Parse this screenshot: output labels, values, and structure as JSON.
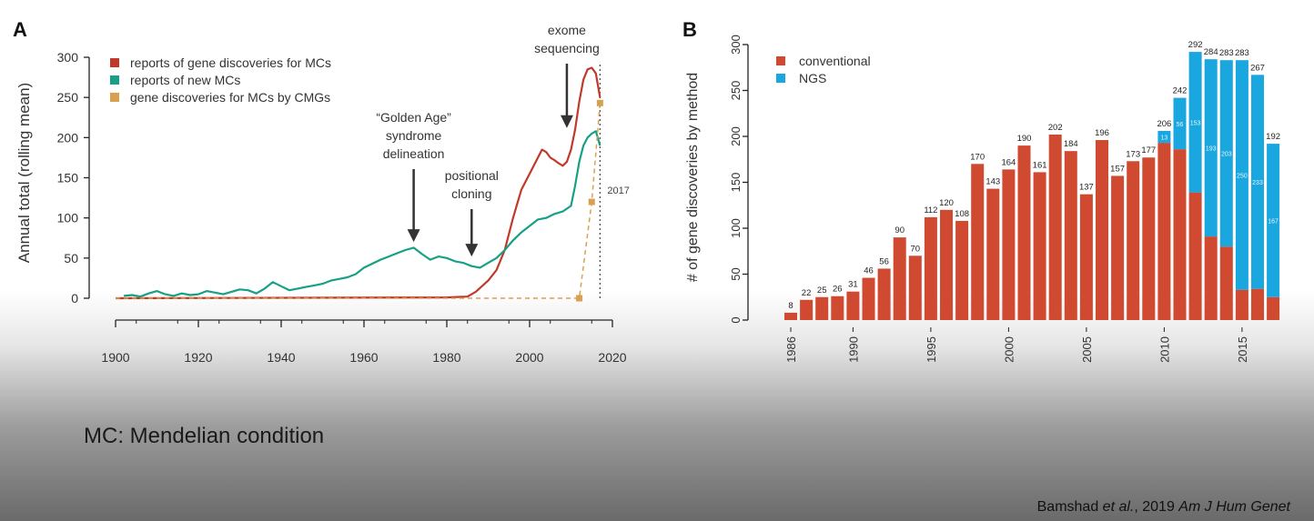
{
  "footnote": "MC: Mendelian condition",
  "citation": {
    "authors": "Bamshad",
    "etal": "et al.",
    "year": ", 2019",
    "journal": "Am J Hum Genet"
  },
  "colors": {
    "red_line": "#c0392b",
    "teal_line": "#16a085",
    "orange_dash": "#d9a050",
    "bar_red": "#d04a32",
    "bar_blue": "#1aa7df"
  },
  "chart_data": [
    {
      "panel_label": "A",
      "type": "line",
      "ylabel": "Annual total (rolling mean)",
      "xlim": [
        1900,
        2020
      ],
      "ylim": [
        0,
        300
      ],
      "x_ticks": [
        1900,
        1920,
        1940,
        1960,
        1980,
        2000,
        2020
      ],
      "y_ticks": [
        0,
        50,
        100,
        150,
        200,
        250,
        300
      ],
      "legend_position": "top-left",
      "series": [
        {
          "name": "reports of gene discoveries for MCs",
          "color": "#c0392b",
          "points": [
            [
              1900,
              0
            ],
            [
              1980,
              1
            ],
            [
              1985,
              2
            ],
            [
              1987,
              8
            ],
            [
              1990,
              22
            ],
            [
              1992,
              35
            ],
            [
              1994,
              60
            ],
            [
              1996,
              100
            ],
            [
              1998,
              135
            ],
            [
              2000,
              155
            ],
            [
              2002,
              175
            ],
            [
              2003,
              185
            ],
            [
              2004,
              182
            ],
            [
              2005,
              175
            ],
            [
              2006,
              172
            ],
            [
              2007,
              168
            ],
            [
              2008,
              165
            ],
            [
              2009,
              170
            ],
            [
              2010,
              185
            ],
            [
              2011,
              210
            ],
            [
              2012,
              245
            ],
            [
              2013,
              272
            ],
            [
              2014,
              285
            ],
            [
              2015,
              287
            ],
            [
              2016,
              280
            ],
            [
              2017,
              250
            ]
          ]
        },
        {
          "name": "reports of new MCs",
          "color": "#16a085",
          "points": [
            [
              1902,
              3
            ],
            [
              1904,
              4
            ],
            [
              1906,
              2
            ],
            [
              1908,
              6
            ],
            [
              1910,
              9
            ],
            [
              1912,
              5
            ],
            [
              1914,
              3
            ],
            [
              1916,
              6
            ],
            [
              1918,
              4
            ],
            [
              1920,
              5
            ],
            [
              1922,
              9
            ],
            [
              1924,
              7
            ],
            [
              1926,
              5
            ],
            [
              1928,
              8
            ],
            [
              1930,
              11
            ],
            [
              1932,
              10
            ],
            [
              1934,
              6
            ],
            [
              1936,
              12
            ],
            [
              1938,
              20
            ],
            [
              1940,
              15
            ],
            [
              1942,
              10
            ],
            [
              1944,
              12
            ],
            [
              1946,
              14
            ],
            [
              1948,
              16
            ],
            [
              1950,
              18
            ],
            [
              1952,
              22
            ],
            [
              1954,
              24
            ],
            [
              1956,
              26
            ],
            [
              1958,
              30
            ],
            [
              1960,
              38
            ],
            [
              1962,
              43
            ],
            [
              1964,
              48
            ],
            [
              1966,
              52
            ],
            [
              1968,
              56
            ],
            [
              1970,
              60
            ],
            [
              1972,
              63
            ],
            [
              1974,
              55
            ],
            [
              1976,
              48
            ],
            [
              1978,
              52
            ],
            [
              1980,
              50
            ],
            [
              1982,
              46
            ],
            [
              1984,
              44
            ],
            [
              1986,
              40
            ],
            [
              1988,
              38
            ],
            [
              1990,
              44
            ],
            [
              1992,
              50
            ],
            [
              1994,
              60
            ],
            [
              1996,
              72
            ],
            [
              1998,
              82
            ],
            [
              2000,
              90
            ],
            [
              2002,
              98
            ],
            [
              2004,
              100
            ],
            [
              2006,
              105
            ],
            [
              2008,
              108
            ],
            [
              2010,
              115
            ],
            [
              2011,
              140
            ],
            [
              2012,
              170
            ],
            [
              2013,
              190
            ],
            [
              2014,
              200
            ],
            [
              2015,
              205
            ],
            [
              2016,
              208
            ],
            [
              2017,
              190
            ]
          ]
        },
        {
          "name": "gene discoveries for MCs by CMGs",
          "color": "#d9a050",
          "dashed": true,
          "points": [
            [
              1900,
              0
            ],
            [
              2012,
              0
            ],
            [
              2015,
              120
            ],
            [
              2017,
              243
            ]
          ]
        }
      ],
      "markers": [
        {
          "series": "gene discoveries for MCs by CMGs",
          "x": 2012,
          "y": 0
        },
        {
          "series": "gene discoveries for MCs by CMGs",
          "x": 2015,
          "y": 120
        },
        {
          "series": "gene discoveries for MCs by CMGs",
          "x": 2017,
          "y": 243
        }
      ],
      "reference_line": {
        "x": 2017,
        "label": "2017"
      },
      "annotations": [
        {
          "lines": [
            "“Golden Age”",
            "syndrome",
            "delineation"
          ],
          "x": 1972,
          "y_tip": 70
        },
        {
          "lines": [
            "positional",
            "cloning"
          ],
          "x": 1986,
          "y_tip": 52
        },
        {
          "lines": [
            "exome",
            "sequencing"
          ],
          "x": 2009,
          "y_tip": 212
        }
      ]
    },
    {
      "panel_label": "B",
      "type": "bar",
      "stacked": true,
      "ylabel": "# of gene discoveries by method",
      "ylim": [
        0,
        300
      ],
      "y_ticks": [
        0,
        50,
        100,
        150,
        200,
        250,
        300
      ],
      "x_tick_labels": [
        "1986",
        "1990",
        "1995",
        "2000",
        "2005",
        "2010",
        "2015"
      ],
      "legend_position": "top-left",
      "categories": [
        1986,
        1987,
        1988,
        1989,
        1990,
        1991,
        1992,
        1993,
        1994,
        1995,
        1996,
        1997,
        1998,
        1999,
        2000,
        2001,
        2002,
        2003,
        2004,
        2005,
        2006,
        2007,
        2008,
        2009,
        2010,
        2011,
        2012,
        2013,
        2014,
        2015,
        2016,
        2017
      ],
      "series": [
        {
          "name": "conventional",
          "color": "#d04a32",
          "values": [
            8,
            22,
            25,
            26,
            31,
            46,
            56,
            90,
            70,
            112,
            120,
            108,
            170,
            143,
            164,
            190,
            161,
            202,
            184,
            137,
            196,
            157,
            173,
            177,
            193,
            186,
            139,
            91,
            80,
            33,
            34,
            25
          ]
        },
        {
          "name": "NGS",
          "color": "#1aa7df",
          "values": [
            0,
            0,
            0,
            0,
            0,
            0,
            0,
            0,
            0,
            0,
            0,
            0,
            0,
            0,
            0,
            0,
            0,
            0,
            0,
            0,
            0,
            0,
            0,
            0,
            13,
            56,
            153,
            193,
            203,
            250,
            233,
            167
          ]
        }
      ],
      "totals": [
        8,
        22,
        25,
        26,
        31,
        46,
        56,
        90,
        70,
        112,
        120,
        108,
        170,
        143,
        164,
        190,
        161,
        202,
        184,
        137,
        196,
        157,
        173,
        177,
        206,
        242,
        292,
        284,
        283,
        283,
        267,
        192
      ],
      "ngs_labels": [
        "",
        "",
        "",
        "",
        "",
        "",
        "",
        "",
        "",
        "",
        "",
        "",
        "",
        "",
        "",
        "",
        "",
        "",
        "",
        "",
        "",
        "",
        "",
        "",
        "13",
        "56",
        "153",
        "193",
        "203",
        "250",
        "233",
        "167"
      ]
    }
  ]
}
